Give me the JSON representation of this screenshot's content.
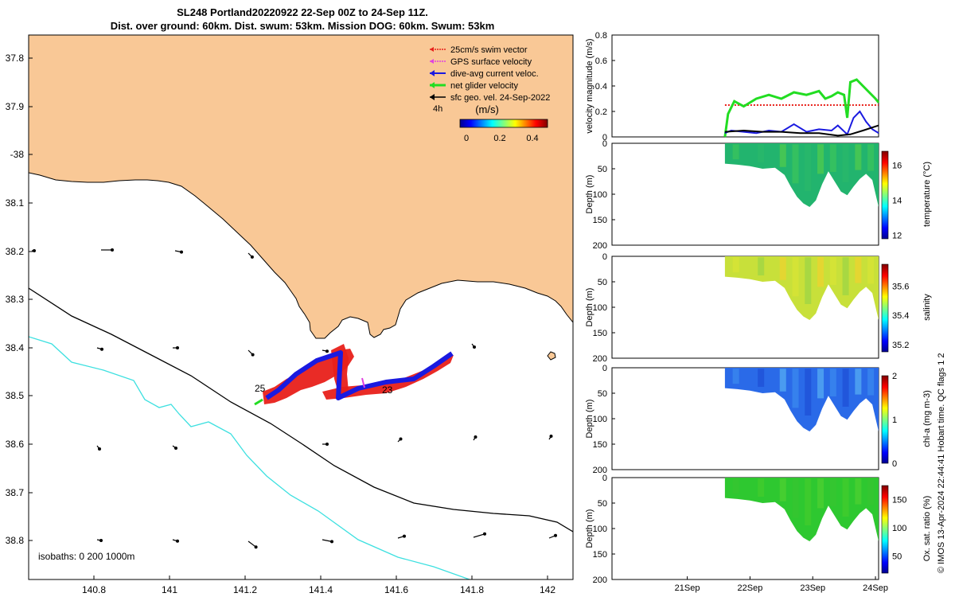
{
  "title": {
    "line1": "SL248 Portland20220922 22-Sep 00Z to 24-Sep 11Z.",
    "line2": "Dist. over ground: 60km. Dist. swum: 53km. Mission DOG: 60km. Swum: 53km"
  },
  "map": {
    "lat_ticks": [
      "37.8",
      "37.9",
      "-38",
      "38.1",
      "38.2",
      "38.3",
      "38.4",
      "38.5",
      "38.6",
      "38.7",
      "38.8"
    ],
    "lon_ticks": [
      "140.8",
      "141",
      "141.2",
      "141.4",
      "141.6",
      "141.8",
      "142"
    ],
    "legend": [
      {
        "label": "25cm/s swim vector",
        "color": "#e8201a"
      },
      {
        "label": "GPS surface velocity",
        "color": "#e040e0"
      },
      {
        "label": "dive-avg current veloc.",
        "color": "#1a1ae0"
      },
      {
        "label": "net glider velocity",
        "color": "#22dd22"
      },
      {
        "label": "sfc geo. vel. 24-Sep-2022",
        "color": "#000000"
      }
    ],
    "time_label": "4h",
    "colorbar": {
      "unit": "(m/s)",
      "ticks": [
        "0",
        "0.2",
        "0.4"
      ]
    },
    "track_labels": [
      "25",
      "23"
    ],
    "isobaths_label": "isobaths: 0   200  1000m",
    "colors": {
      "land": "#f9c896",
      "isobath_200": "#000000",
      "isobath_1000": "#3de0e0"
    }
  },
  "chart_data": [
    {
      "type": "line",
      "title": "",
      "ylabel": "velocity magnitude (m/s)",
      "ylim": [
        0,
        0.8
      ],
      "yticks": [
        "0",
        "0.2",
        "0.4",
        "0.6",
        "0.8"
      ],
      "xlim": [
        20.2,
        24.45
      ],
      "series": [
        {
          "name": "swim vector",
          "color": "#e8201a",
          "x": [
            22.0,
            24.45
          ],
          "y": [
            0.25,
            0.25
          ]
        },
        {
          "name": "net glider velocity",
          "color": "#22dd22",
          "x": [
            22.0,
            22.05,
            22.15,
            22.3,
            22.5,
            22.7,
            22.9,
            23.1,
            23.3,
            23.5,
            23.6,
            23.7,
            23.8,
            23.9,
            23.95,
            24.0,
            24.1,
            24.2,
            24.3,
            24.4,
            24.45
          ],
          "y": [
            0.0,
            0.18,
            0.28,
            0.24,
            0.3,
            0.33,
            0.3,
            0.35,
            0.33,
            0.36,
            0.3,
            0.32,
            0.35,
            0.33,
            0.15,
            0.43,
            0.45,
            0.4,
            0.35,
            0.3,
            0.27
          ]
        },
        {
          "name": "dive-avg current",
          "color": "#1a1ae0",
          "x": [
            22.0,
            22.1,
            22.3,
            22.5,
            22.7,
            22.9,
            23.1,
            23.3,
            23.5,
            23.7,
            23.8,
            23.95,
            24.05,
            24.15,
            24.25,
            24.35,
            24.45
          ],
          "y": [
            0.03,
            0.05,
            0.04,
            0.03,
            0.05,
            0.04,
            0.1,
            0.04,
            0.06,
            0.05,
            0.09,
            0.02,
            0.15,
            0.2,
            0.12,
            0.06,
            0.03
          ]
        },
        {
          "name": "sfc geo. vel.",
          "color": "#000000",
          "x": [
            22.0,
            22.3,
            22.6,
            22.9,
            23.2,
            23.5,
            23.8,
            24.0,
            24.2,
            24.45
          ],
          "y": [
            0.04,
            0.05,
            0.04,
            0.04,
            0.03,
            0.03,
            0.01,
            0.02,
            0.05,
            0.09
          ]
        }
      ]
    },
    {
      "type": "heatmap",
      "ylabel": "Depth (m)",
      "ylim": [
        200,
        0
      ],
      "yticks": [
        "0",
        "50",
        "100",
        "150",
        "200"
      ],
      "colorbar_label": "temperature (°C)",
      "colorbar_ticks": [
        "12",
        "14",
        "16"
      ],
      "colorbar_range": [
        11.8,
        16.8
      ]
    },
    {
      "type": "heatmap",
      "ylabel": "Depth (m)",
      "ylim": [
        200,
        0
      ],
      "yticks": [
        "0",
        "50",
        "100",
        "150",
        "200"
      ],
      "colorbar_label": "salinity",
      "colorbar_ticks": [
        "35.2",
        "35.4",
        "35.6"
      ],
      "colorbar_range": [
        35.15,
        35.75
      ]
    },
    {
      "type": "heatmap",
      "ylabel": "Depth (m)",
      "ylim": [
        200,
        0
      ],
      "yticks": [
        "0",
        "50",
        "100",
        "150",
        "200"
      ],
      "colorbar_label": "chl-a (mg m-3)",
      "colorbar_ticks": [
        "0",
        "1",
        "2"
      ],
      "colorbar_range": [
        0,
        2
      ]
    },
    {
      "type": "heatmap",
      "ylabel": "Depth (m)",
      "ylim": [
        200,
        0
      ],
      "yticks": [
        "0",
        "50",
        "100",
        "150",
        "200"
      ],
      "colorbar_label": "Ox. sat. ratio (%)",
      "colorbar_ticks": [
        "50",
        "100",
        "150"
      ],
      "colorbar_range": [
        20,
        175
      ],
      "xticks": [
        "21Sep",
        "22Sep",
        "23Sep",
        "24Sep"
      ]
    }
  ],
  "depth_section": {
    "x": [
      22.0,
      22.2,
      22.4,
      22.6,
      22.8,
      22.95,
      23.05,
      23.15,
      23.25,
      23.35,
      23.45,
      23.55,
      23.65,
      23.75,
      23.85,
      23.95,
      24.05,
      24.15,
      24.25,
      24.35,
      24.45
    ],
    "max_depth": [
      40,
      42,
      45,
      50,
      48,
      62,
      85,
      105,
      118,
      125,
      112,
      80,
      55,
      75,
      95,
      102,
      85,
      70,
      60,
      72,
      125
    ]
  },
  "credit": "© IMOS 13-Apr-2024 22:44:41 Hobart time. QC flags 1  2"
}
